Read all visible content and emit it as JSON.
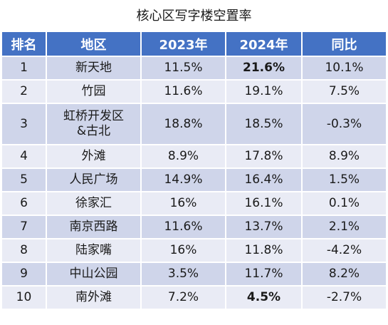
{
  "title": "核心区写字楼空置率",
  "headers": [
    "排名",
    "地区",
    "2023年",
    "2024年",
    "同比"
  ],
  "rows": [
    {
      "rank": "1",
      "area": "新天地",
      "y2023": "11.5%",
      "y2024": "21.6%",
      "yoy": "10.1%",
      "highlight_2024": true
    },
    {
      "rank": "2",
      "area": "竹园",
      "y2023": "11.6%",
      "y2024": "19.1%",
      "yoy": "7.5%",
      "highlight_2024": false
    },
    {
      "rank": "3",
      "area": "虹桥开发区\n&古北",
      "y2023": "18.8%",
      "y2024": "18.5%",
      "yoy": "-0.3%",
      "highlight_2024": false
    },
    {
      "rank": "4",
      "area": "外滩",
      "y2023": "8.9%",
      "y2024": "17.8%",
      "yoy": "8.9%",
      "highlight_2024": false
    },
    {
      "rank": "5",
      "area": "人民广场",
      "y2023": "14.9%",
      "y2024": "16.4%",
      "yoy": "1.5%",
      "highlight_2024": false
    },
    {
      "rank": "6",
      "area": "徐家汇",
      "y2023": "16%",
      "y2024": "16.1%",
      "yoy": "0.1%",
      "highlight_2024": false
    },
    {
      "rank": "7",
      "area": "南京西路",
      "y2023": "11.6%",
      "y2024": "13.7%",
      "yoy": "2.1%",
      "highlight_2024": false
    },
    {
      "rank": "8",
      "area": "陆家嘴",
      "y2023": "16%",
      "y2024": "11.8%",
      "yoy": "-4.2%",
      "highlight_2024": false
    },
    {
      "rank": "9",
      "area": "中山公园",
      "y2023": "3.5%",
      "y2024": "11.7%",
      "yoy": "8.2%",
      "highlight_2024": false
    },
    {
      "rank": "10",
      "area": "南外滩",
      "y2023": "7.2%",
      "y2024": "4.5%",
      "yoy": "-2.7%",
      "highlight_2024": true
    }
  ],
  "colors": {
    "header_bg": "#4472C4",
    "row_odd": "#CFD5EA",
    "row_even": "#E9EBF5",
    "highlight": "#FF1F1F"
  }
}
